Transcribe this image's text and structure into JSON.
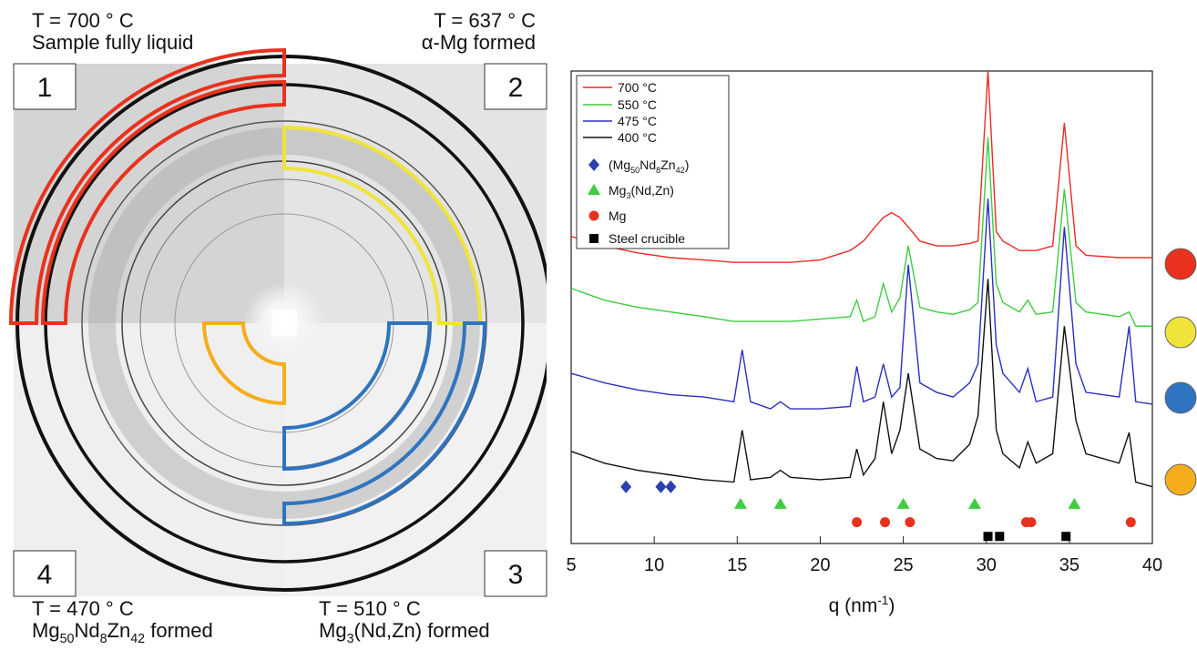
{
  "image": {
    "quadrants": [
      {
        "number": "1",
        "temperature": "T = 700 ° C",
        "caption": [
          "Sample fully liquid"
        ]
      },
      {
        "number": "2",
        "temperature": "T = 637 ° C",
        "caption": [
          "α-Mg formed"
        ]
      },
      {
        "number": "3",
        "temperature": "T = 510 ° C",
        "caption": [
          "Mg",
          "3",
          "(Nd,Zn) formed"
        ]
      },
      {
        "number": "4",
        "temperature": "T = 470 ° C",
        "caption": [
          "Mg",
          "50",
          "Nd",
          "8",
          "Zn",
          "42",
          " formed"
        ]
      }
    ]
  },
  "chart_data": {
    "type": "line",
    "x_label": [
      "q (nm",
      "-1",
      ")"
    ],
    "x": [
      5,
      7,
      9,
      11,
      13,
      14.8,
      15.3,
      15.8,
      17,
      17.6,
      18.2,
      20,
      21.8,
      22.2,
      22.6,
      23.3,
      23.8,
      24.3,
      24.8,
      25.3,
      26,
      27,
      28,
      29,
      29.5,
      30.1,
      30.6,
      31,
      32,
      32.5,
      33,
      34,
      34.7,
      35.4,
      36,
      38,
      38.6,
      39,
      40
    ],
    "xlim": [
      5,
      40
    ],
    "xticks": [
      5,
      10,
      15,
      20,
      25,
      30,
      35,
      40
    ],
    "ylim": [
      0,
      100
    ],
    "log_scale": false,
    "series": [
      {
        "name": [
          "700 °C"
        ],
        "color": "#ee2a24",
        "values": [
          65,
          63,
          61.5,
          60.5,
          60,
          59.5,
          59.5,
          59.5,
          59.5,
          59.5,
          59.5,
          60,
          62,
          63,
          64,
          67,
          69,
          70,
          69,
          67,
          64,
          63,
          63,
          63.5,
          64,
          100,
          66,
          64,
          62,
          62,
          62,
          63,
          89,
          63,
          61,
          60.5,
          60.5,
          60.5,
          60.5
        ]
      },
      {
        "name": [
          "550 °C"
        ],
        "color": "#3fcc3f",
        "values": [
          54,
          51.5,
          50,
          49,
          48,
          47,
          47,
          47,
          47,
          47,
          47,
          47.5,
          48,
          51.5,
          47,
          48,
          55,
          49,
          52,
          63,
          50,
          49,
          48.5,
          49.5,
          51,
          86,
          55,
          51,
          49,
          51.5,
          48.5,
          49,
          75,
          51,
          49,
          48,
          49,
          46,
          46
        ]
      },
      {
        "name": [
          "475 °C"
        ],
        "color": "#2b2fc4",
        "values": [
          36,
          34,
          32.5,
          31.5,
          31,
          30,
          41,
          30,
          28.5,
          30,
          28.5,
          28.5,
          29,
          37.5,
          30,
          31,
          38,
          31,
          33,
          59,
          34,
          32,
          31,
          34,
          38,
          73,
          42,
          36,
          32,
          37,
          30,
          31,
          67,
          38,
          32,
          31,
          46,
          30,
          29.5
        ]
      },
      {
        "name": [
          "400 °C"
        ],
        "color": "#111111",
        "values": [
          19.5,
          17,
          15.5,
          14.5,
          13.5,
          13,
          24,
          13.5,
          14,
          15.5,
          14,
          13.5,
          14,
          20,
          14.5,
          18,
          30,
          19,
          24,
          36,
          20,
          18,
          17.5,
          21,
          27,
          56,
          24,
          19,
          16,
          21.5,
          17,
          19,
          46,
          26,
          19,
          17,
          23.5,
          13,
          12
        ]
      }
    ],
    "markers": [
      {
        "name": [
          "(Mg",
          "50",
          "Nd",
          "8",
          "Zn",
          "42",
          ")"
        ],
        "color": "#2b3fae",
        "shape": "diamond",
        "x": [
          8.3,
          10.4,
          11
        ],
        "values": [
          12,
          12,
          12
        ]
      },
      {
        "name": [
          "Mg",
          "3",
          "(Nd,Zn)"
        ],
        "color": "#3fcc3f",
        "shape": "triangle",
        "x": [
          15.2,
          17.6,
          25,
          29.3,
          35.3
        ],
        "values": [
          8.3,
          8.3,
          8.3,
          8.3,
          8.3
        ]
      },
      {
        "name": [
          "Mg"
        ],
        "color": "#e8321e",
        "shape": "circle",
        "x": [
          22.2,
          23.9,
          25.4,
          32.4,
          32.7,
          38.7
        ],
        "values": [
          4.5,
          4.5,
          4.5,
          4.5,
          4.5,
          4.5
        ]
      },
      {
        "name": [
          "Steel crucible"
        ],
        "color": "#000000",
        "shape": "square",
        "x": [
          30.1,
          30.8,
          34.8
        ],
        "values": [
          1.5,
          1.5,
          1.5
        ]
      }
    ]
  }
}
